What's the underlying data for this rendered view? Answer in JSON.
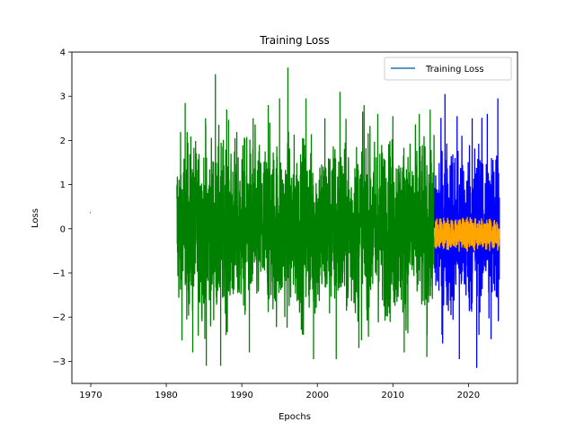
{
  "chart_data": {
    "type": "line",
    "title": "Training Loss",
    "xlabel": "Epochs",
    "ylabel": "Loss",
    "xlim": [
      1967.5,
      2026.5
    ],
    "ylim": [
      -3.5,
      4.0
    ],
    "xticks": [
      1970,
      1980,
      1990,
      2000,
      2010,
      2020
    ],
    "yticks": [
      -3,
      -2,
      -1,
      0,
      1,
      2,
      3,
      4
    ],
    "grid": false,
    "legend": {
      "position": "top-right",
      "entries": [
        {
          "label": "Training Loss",
          "color": "#1f77b4"
        }
      ]
    },
    "series": [
      {
        "color": "#1f77b4",
        "x": [
          1969.9,
          1970.0
        ],
        "y": [
          0.37,
          0.37
        ]
      },
      {
        "color": "#008000",
        "x": [
          1981.4,
          2015.5
        ],
        "y_min": [
          -1.3,
          -3.1
        ],
        "y_max": [
          1.4,
          3.65
        ],
        "y_band": [
          -2.0,
          2.0
        ],
        "peaks": [
          {
            "x": 1982.5,
            "y": 2.85
          },
          {
            "x": 1985.2,
            "y": 2.5
          },
          {
            "x": 1986.5,
            "y": 3.5
          },
          {
            "x": 1988.0,
            "y": 2.7
          },
          {
            "x": 1991.5,
            "y": 2.5
          },
          {
            "x": 1993.5,
            "y": 2.8
          },
          {
            "x": 1995.0,
            "y": 2.95
          },
          {
            "x": 1996.1,
            "y": 3.65
          },
          {
            "x": 1998.5,
            "y": 2.95
          },
          {
            "x": 2001.0,
            "y": 2.5
          },
          {
            "x": 2003.0,
            "y": 3.1
          },
          {
            "x": 2006.0,
            "y": 2.65
          },
          {
            "x": 2008.0,
            "y": 2.6
          },
          {
            "x": 2010.0,
            "y": 2.55
          },
          {
            "x": 2013.5,
            "y": 2.6
          }
        ],
        "troughs": [
          {
            "x": 1983.5,
            "y": -2.8
          },
          {
            "x": 1985.3,
            "y": -3.1
          },
          {
            "x": 1987.2,
            "y": -3.1
          },
          {
            "x": 1991.0,
            "y": -2.8
          },
          {
            "x": 1999.5,
            "y": -2.95
          },
          {
            "x": 2002.5,
            "y": -2.95
          },
          {
            "x": 2005.5,
            "y": -2.7
          },
          {
            "x": 2011.5,
            "y": -2.8
          },
          {
            "x": 2014.5,
            "y": -2.9
          }
        ]
      },
      {
        "color": "#0000ff",
        "x": [
          2015.5,
          2024.1
        ],
        "y_min": [
          -3.15,
          -2.2
        ],
        "y_max": [
          2.95,
          3.05
        ],
        "y_band": [
          -2.0,
          2.0
        ],
        "peaks": [
          {
            "x": 2016.9,
            "y": 3.05
          },
          {
            "x": 2018.5,
            "y": 2.55
          },
          {
            "x": 2020.5,
            "y": 2.5
          },
          {
            "x": 2022.5,
            "y": 2.6
          },
          {
            "x": 2023.9,
            "y": 2.95
          }
        ],
        "troughs": [
          {
            "x": 2016.5,
            "y": -2.4
          },
          {
            "x": 2018.8,
            "y": -2.95
          },
          {
            "x": 2021.1,
            "y": -3.15
          },
          {
            "x": 2023.0,
            "y": -2.5
          }
        ]
      },
      {
        "color": "#ffa500",
        "x": [
          2015.5,
          2024.1
        ],
        "amplitude": 0.4,
        "y_min": [
          -0.65
        ],
        "y_max": [
          0.4
        ],
        "cycles": 17
      }
    ]
  }
}
